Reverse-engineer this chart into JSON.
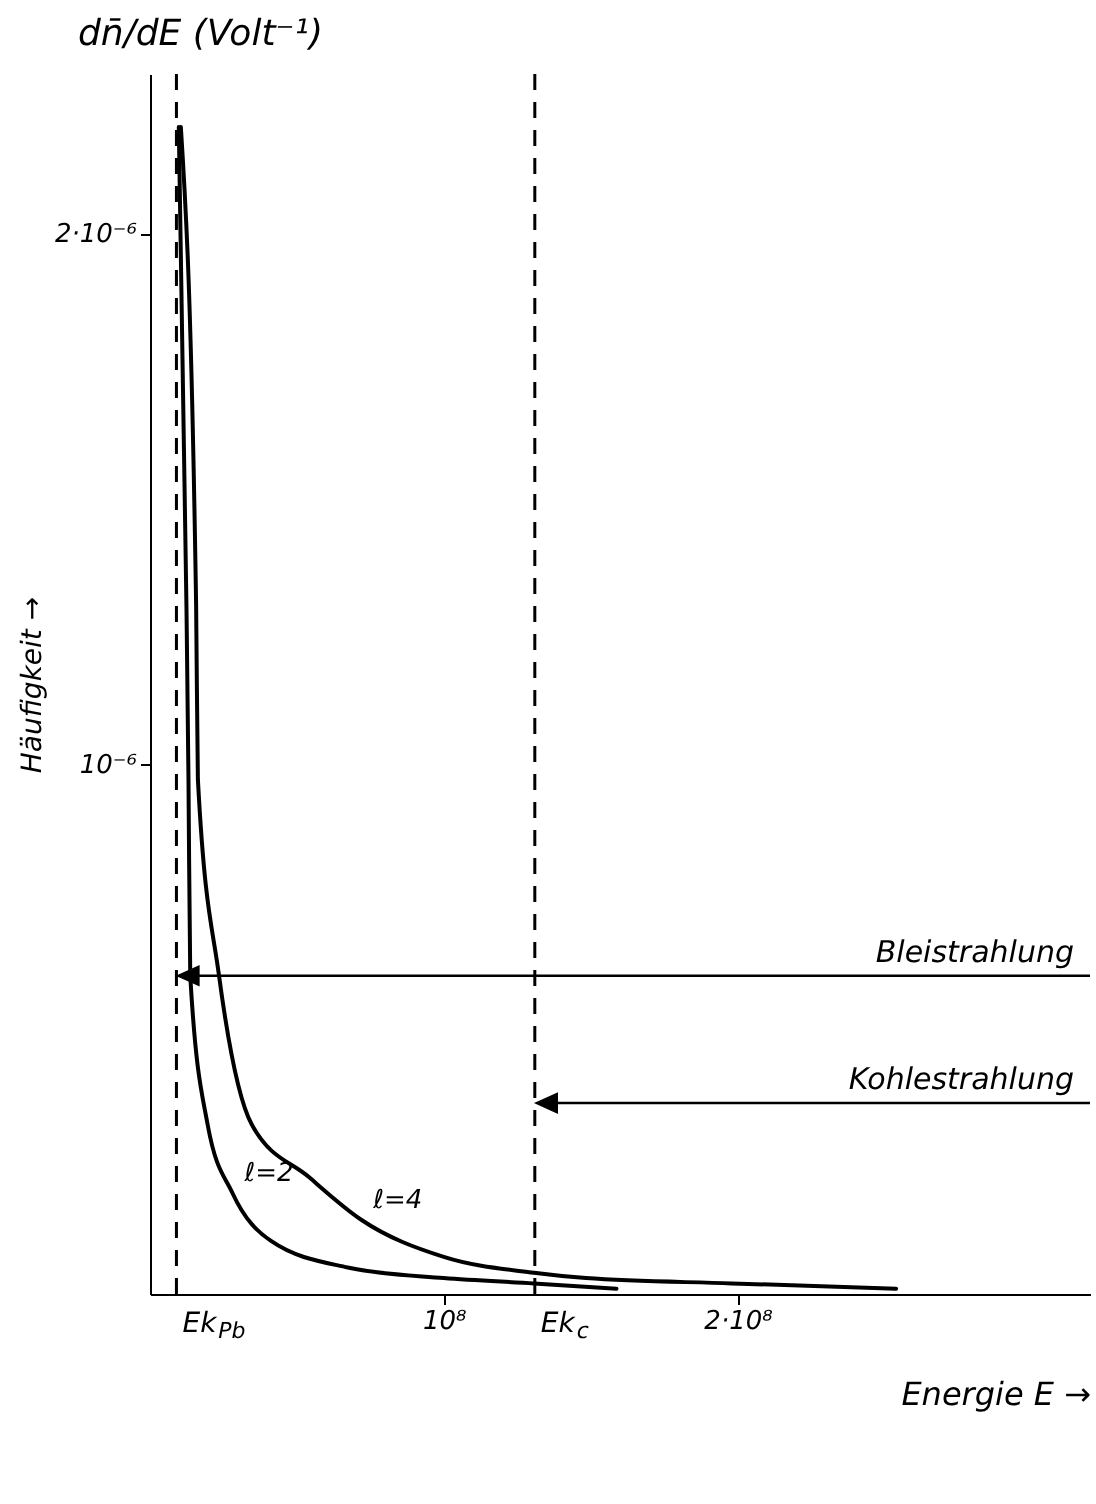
{
  "chart_data": {
    "type": "line",
    "title": "dn̄/dE (Volt⁻¹)",
    "xlabel": "Energie E →",
    "ylabel": "Häufigkeit →",
    "xlim": [
      0,
      320000000
    ],
    "ylim": [
      0,
      2.3e-06
    ],
    "xticks": [
      {
        "value": 100000000,
        "label": "10⁸"
      },
      {
        "value": 200000000,
        "label": "2·10⁸"
      }
    ],
    "yticks": [
      {
        "value": 1e-06,
        "label": "10⁻⁶"
      },
      {
        "value": 2e-06,
        "label": "2·10⁻⁶"
      }
    ],
    "series": [
      {
        "name": "ℓ=2",
        "color": "#000000",
        "x": [
          9800000,
          12400000,
          13100000,
          13700000,
          19600000,
          28100000,
          41200000,
          67300000,
          100000000,
          130700000,
          158800000
        ],
        "values": [
          2.2e-06,
          1.3e-06,
          9.7e-07,
          6e-07,
          3.2e-07,
          1.9e-07,
          1e-07,
          5e-08,
          3e-08,
          2e-08,
          1e-08
        ]
      },
      {
        "name": "ℓ=4",
        "color": "#000000",
        "x": [
          10500000,
          15700000,
          16300000,
          23500000,
          34600000,
          54200000,
          71900000,
          100000000,
          130700000,
          148400000,
          198000000,
          254000000
        ],
        "values": [
          2.2e-06,
          1.3e-06,
          9.7e-07,
          6e-07,
          3.2e-07,
          2.2e-07,
          1.4e-07,
          7e-08,
          4e-08,
          3e-08,
          2e-08,
          1e-08
        ]
      }
    ],
    "ref_lines": [
      {
        "axis": "x",
        "value": 9000000,
        "label": "Ek$_{Pb}$",
        "line_style": "dashed"
      },
      {
        "axis": "x",
        "value": 131000000,
        "label": "Ek$_{c}$",
        "line_style": "dashed"
      }
    ],
    "annotations": [
      {
        "text": "Bleistrahlung",
        "x": 9000000,
        "y": 6e-07
      },
      {
        "text": "Kohlestrahlung",
        "x": 131000000,
        "y": 3.6e-07
      }
    ],
    "legend": false,
    "grid": false,
    "line_style": "solid",
    "marker": "none"
  }
}
